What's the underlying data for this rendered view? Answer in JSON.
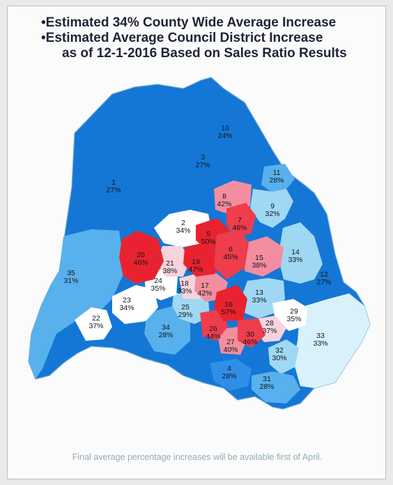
{
  "header": {
    "line1": "•Estimated 34% County Wide Average Increase",
    "line2": "•Estimated Average Council District Increase",
    "line3": "as of 12-1-2016 Based on Sales Ratio Results"
  },
  "colors": {
    "darkest_blue": "#1477d6",
    "dark_blue": "#2f8ee6",
    "mid_blue": "#58b1ec",
    "light_blue": "#9fd8f3",
    "pale_blue": "#d9f1fa",
    "white": "#ffffff",
    "pale_pink": "#f6d3dd",
    "pink": "#f28ea0",
    "red": "#ee3d4d",
    "deep_red": "#e8232f"
  },
  "districts": [
    {
      "id": "1",
      "label": "1",
      "increase": "27%"
    },
    {
      "id": "2",
      "label": "2",
      "increase": "34%"
    },
    {
      "id": "3",
      "label": "3",
      "increase": "27%"
    },
    {
      "id": "4",
      "label": "4",
      "increase": "28%"
    },
    {
      "id": "5",
      "label": "5",
      "increase": "50%"
    },
    {
      "id": "6",
      "label": "6",
      "increase": "45%"
    },
    {
      "id": "7",
      "label": "7",
      "increase": "46%"
    },
    {
      "id": "8",
      "label": "8",
      "increase": "42%"
    },
    {
      "id": "9",
      "label": "9",
      "increase": "32%"
    },
    {
      "id": "10",
      "label": "10",
      "increase": "24%"
    },
    {
      "id": "11",
      "label": "11",
      "increase": "28%"
    },
    {
      "id": "12",
      "label": "12",
      "increase": "27%"
    },
    {
      "id": "13",
      "label": "13",
      "increase": "33%"
    },
    {
      "id": "14",
      "label": "14",
      "increase": "33%"
    },
    {
      "id": "15",
      "label": "15",
      "increase": "38%"
    },
    {
      "id": "16",
      "label": "16",
      "increase": "57%"
    },
    {
      "id": "17",
      "label": "17",
      "increase": "42%"
    },
    {
      "id": "18",
      "label": "18",
      "increase": "33%"
    },
    {
      "id": "19",
      "label": "19",
      "increase": "47%"
    },
    {
      "id": "20",
      "label": "20",
      "increase": "46%"
    },
    {
      "id": "21",
      "label": "21",
      "increase": "38%"
    },
    {
      "id": "22",
      "label": "22",
      "increase": "37%"
    },
    {
      "id": "23",
      "label": "23",
      "increase": "34%"
    },
    {
      "id": "24",
      "label": "24",
      "increase": "35%"
    },
    {
      "id": "25",
      "label": "25",
      "increase": "29%"
    },
    {
      "id": "26",
      "label": "26",
      "increase": "44%"
    },
    {
      "id": "27",
      "label": "27",
      "increase": "40%"
    },
    {
      "id": "28",
      "label": "28",
      "increase": "37%"
    },
    {
      "id": "29",
      "label": "29",
      "increase": "35%"
    },
    {
      "id": "30",
      "label": "30",
      "increase": "46%"
    },
    {
      "id": "31",
      "label": "31",
      "increase": "28%"
    },
    {
      "id": "32",
      "label": "32",
      "increase": "30%"
    },
    {
      "id": "33",
      "label": "33",
      "increase": "33%"
    },
    {
      "id": "34",
      "label": "34",
      "increase": "28%"
    },
    {
      "id": "35",
      "label": "35",
      "increase": "31%"
    }
  ],
  "footer": {
    "note": "Final average percentage increases will be available first of April."
  }
}
